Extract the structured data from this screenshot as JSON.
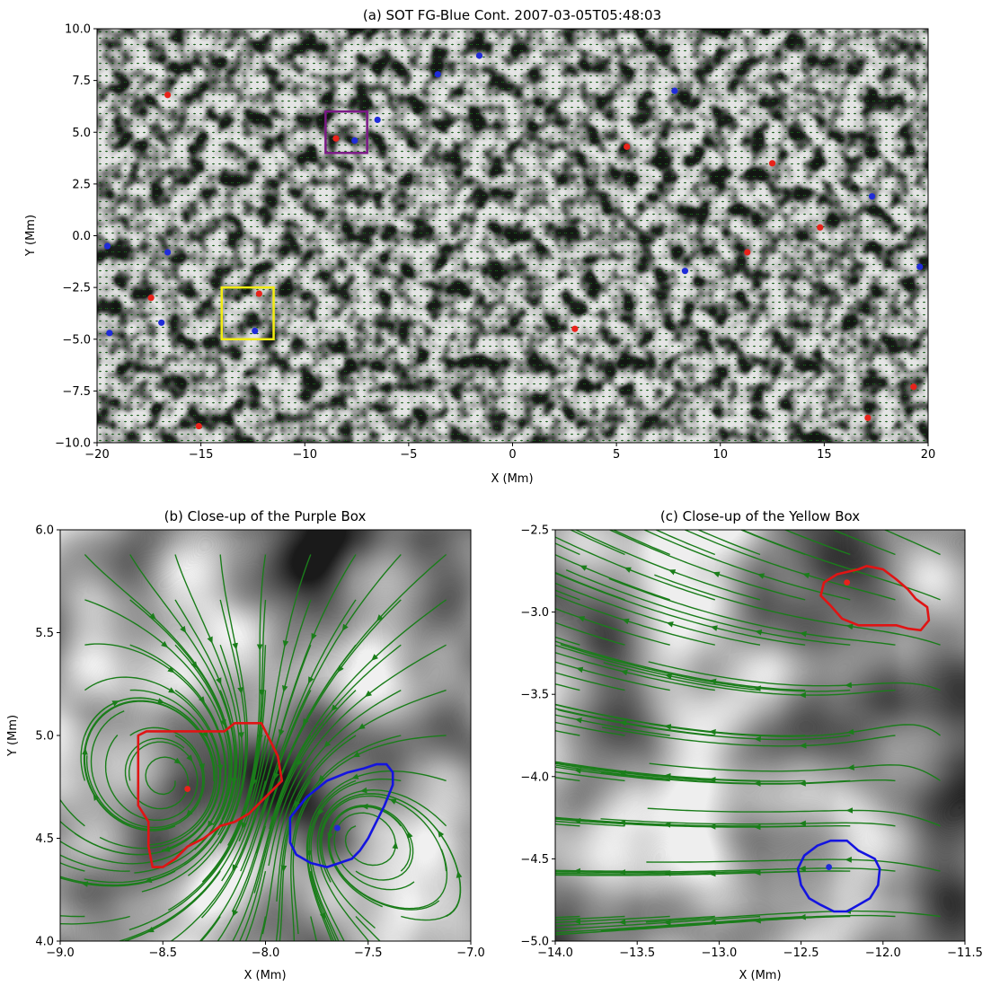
{
  "colors": {
    "vector": "#1f8a1f",
    "stream": "#1a7d1a",
    "red_point": "#e8221a",
    "blue_point": "#1f2bd8",
    "purple_box": "#7b1a86",
    "yellow_box": "#f2ec11",
    "red_contour": "#e01414",
    "blue_contour": "#1414e0"
  },
  "chart_data": [
    {
      "id": "a",
      "type": "scatter",
      "background": "continuum image (granulation) with green velocity vectors",
      "title": "(a) SOT FG-Blue Cont. 2007-03-05T05:48:03",
      "xlabel": "X (Mm)",
      "ylabel": "Y (Mm)",
      "xlim": [
        -20,
        20
      ],
      "ylim": [
        -10,
        10
      ],
      "xticks": [
        -20,
        -15,
        -10,
        -5,
        0,
        5,
        10,
        15,
        20
      ],
      "yticks": [
        -10.0,
        -7.5,
        -5.0,
        -2.5,
        0.0,
        2.5,
        5.0,
        7.5,
        10.0
      ],
      "xtick_labels": [
        "−20",
        "−15",
        "−10",
        "−5",
        "0",
        "5",
        "10",
        "15",
        "20"
      ],
      "ytick_labels": [
        "−10.0",
        "−7.5",
        "−5.0",
        "−2.5",
        "0.0",
        "2.5",
        "5.0",
        "7.5",
        "10.0"
      ],
      "series": [
        {
          "color": "red",
          "points": [
            [
              -16.6,
              6.8
            ],
            [
              -8.5,
              4.7
            ],
            [
              5.5,
              4.3
            ],
            [
              12.5,
              3.5
            ],
            [
              14.8,
              0.4
            ],
            [
              11.3,
              -0.8
            ],
            [
              -17.4,
              -3.0
            ],
            [
              -12.2,
              -2.8
            ],
            [
              3.0,
              -4.5
            ],
            [
              19.3,
              -7.3
            ],
            [
              17.1,
              -8.8
            ],
            [
              -15.1,
              -9.2
            ]
          ]
        },
        {
          "color": "blue",
          "points": [
            [
              -1.6,
              8.7
            ],
            [
              -3.6,
              7.8
            ],
            [
              7.8,
              7.0
            ],
            [
              -6.5,
              5.6
            ],
            [
              -7.6,
              4.6
            ],
            [
              17.3,
              1.9
            ],
            [
              -19.5,
              -0.5
            ],
            [
              -16.6,
              -0.8
            ],
            [
              19.6,
              -1.5
            ],
            [
              8.3,
              -1.7
            ],
            [
              -16.9,
              -4.2
            ],
            [
              -12.4,
              -4.6
            ],
            [
              -19.4,
              -4.7
            ]
          ]
        }
      ],
      "boxes": [
        {
          "color": "purple",
          "x": [
            -9.0,
            -7.0
          ],
          "y": [
            4.0,
            6.0
          ]
        },
        {
          "color": "yellow",
          "x": [
            -14.0,
            -11.5
          ],
          "y": [
            -5.0,
            -2.5
          ]
        }
      ]
    },
    {
      "id": "b",
      "type": "scatter",
      "background": "continuum image close-up with green flow streamlines",
      "title": "(b) Close-up of the Purple Box",
      "xlabel": "X (Mm)",
      "ylabel": "Y (Mm)",
      "xlim": [
        -9.0,
        -7.0
      ],
      "ylim": [
        4.0,
        6.0
      ],
      "xticks": [
        -9.0,
        -8.5,
        -8.0,
        -7.5,
        -7.0
      ],
      "yticks": [
        4.0,
        4.5,
        5.0,
        5.5,
        6.0
      ],
      "xtick_labels": [
        "−9.0",
        "−8.5",
        "−8.0",
        "−7.5",
        "−7.0"
      ],
      "ytick_labels": [
        "4.0",
        "4.5",
        "5.0",
        "5.5",
        "6.0"
      ],
      "series": [
        {
          "color": "red",
          "points": [
            [
              -8.38,
              4.74
            ]
          ]
        },
        {
          "color": "blue",
          "points": [
            [
              -7.65,
              4.55
            ]
          ]
        }
      ],
      "contours": [
        {
          "color": "red",
          "points": [
            [
              -8.62,
              5.0
            ],
            [
              -8.58,
              5.02
            ],
            [
              -8.2,
              5.02
            ],
            [
              -8.15,
              5.06
            ],
            [
              -8.02,
              5.06
            ],
            [
              -7.98,
              4.98
            ],
            [
              -7.94,
              4.9
            ],
            [
              -7.92,
              4.78
            ],
            [
              -8.0,
              4.7
            ],
            [
              -8.08,
              4.62
            ],
            [
              -8.15,
              4.58
            ],
            [
              -8.22,
              4.56
            ],
            [
              -8.3,
              4.5
            ],
            [
              -8.38,
              4.46
            ],
            [
              -8.44,
              4.4
            ],
            [
              -8.5,
              4.36
            ],
            [
              -8.55,
              4.36
            ],
            [
              -8.57,
              4.46
            ],
            [
              -8.57,
              4.58
            ],
            [
              -8.62,
              4.66
            ],
            [
              -8.62,
              4.82
            ]
          ]
        },
        {
          "color": "blue",
          "points": [
            [
              -7.6,
              4.82
            ],
            [
              -7.52,
              4.84
            ],
            [
              -7.46,
              4.86
            ],
            [
              -7.41,
              4.86
            ],
            [
              -7.38,
              4.82
            ],
            [
              -7.38,
              4.76
            ],
            [
              -7.42,
              4.66
            ],
            [
              -7.46,
              4.58
            ],
            [
              -7.5,
              4.5
            ],
            [
              -7.54,
              4.44
            ],
            [
              -7.58,
              4.4
            ],
            [
              -7.7,
              4.36
            ],
            [
              -7.78,
              4.38
            ],
            [
              -7.85,
              4.42
            ],
            [
              -7.88,
              4.48
            ],
            [
              -7.88,
              4.6
            ],
            [
              -7.8,
              4.7
            ],
            [
              -7.7,
              4.78
            ]
          ]
        }
      ]
    },
    {
      "id": "c",
      "type": "scatter",
      "background": "continuum image close-up with green flow streamlines",
      "title": "(c) Close-up of the Yellow Box",
      "xlabel": "X (Mm)",
      "ylabel": "",
      "xlim": [
        -14.0,
        -11.5
      ],
      "ylim": [
        -5.0,
        -2.5
      ],
      "xticks": [
        -14.0,
        -13.5,
        -13.0,
        -12.5,
        -12.0,
        -11.5
      ],
      "yticks": [
        -5.0,
        -4.5,
        -4.0,
        -3.5,
        -3.0,
        -2.5
      ],
      "xtick_labels": [
        "−14.0",
        "−13.5",
        "−13.0",
        "−12.5",
        "−12.0",
        "−11.5"
      ],
      "ytick_labels": [
        "−5.0",
        "−4.5",
        "−4.0",
        "−3.5",
        "−3.0",
        "−2.5"
      ],
      "series": [
        {
          "color": "red",
          "points": [
            [
              -12.22,
              -2.82
            ]
          ]
        },
        {
          "color": "blue",
          "points": [
            [
              -12.33,
              -4.55
            ]
          ]
        }
      ],
      "contours": [
        {
          "color": "red",
          "points": [
            [
              -12.28,
              -2.77
            ],
            [
              -12.15,
              -2.74
            ],
            [
              -12.1,
              -2.72
            ],
            [
              -12.0,
              -2.74
            ],
            [
              -11.92,
              -2.8
            ],
            [
              -11.85,
              -2.86
            ],
            [
              -11.8,
              -2.92
            ],
            [
              -11.73,
              -2.97
            ],
            [
              -11.72,
              -3.05
            ],
            [
              -11.77,
              -3.11
            ],
            [
              -11.85,
              -3.1
            ],
            [
              -11.92,
              -3.08
            ],
            [
              -12.15,
              -3.08
            ],
            [
              -12.25,
              -3.04
            ],
            [
              -12.32,
              -2.96
            ],
            [
              -12.38,
              -2.9
            ],
            [
              -12.36,
              -2.82
            ]
          ]
        },
        {
          "color": "blue",
          "points": [
            [
              -12.4,
              -4.42
            ],
            [
              -12.32,
              -4.39
            ],
            [
              -12.22,
              -4.39
            ],
            [
              -12.15,
              -4.45
            ],
            [
              -12.05,
              -4.5
            ],
            [
              -12.02,
              -4.56
            ],
            [
              -12.03,
              -4.66
            ],
            [
              -12.08,
              -4.74
            ],
            [
              -12.15,
              -4.78
            ],
            [
              -12.22,
              -4.82
            ],
            [
              -12.3,
              -4.82
            ],
            [
              -12.38,
              -4.78
            ],
            [
              -12.45,
              -4.74
            ],
            [
              -12.5,
              -4.66
            ],
            [
              -12.52,
              -4.56
            ],
            [
              -12.48,
              -4.48
            ]
          ]
        }
      ]
    }
  ]
}
